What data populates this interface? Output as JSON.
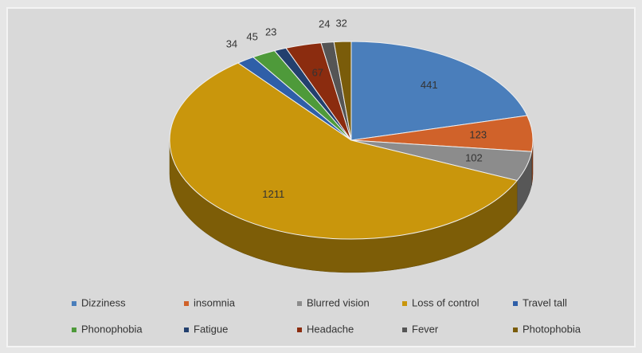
{
  "chart_data": {
    "type": "pie",
    "categories": [
      "Dizziness",
      "insomnia",
      "Blurred vision",
      "Loss of control",
      "Travel tall",
      "Phonophobia",
      "Fatigue",
      "Headache",
      "Fever",
      "Photophobia"
    ],
    "values": [
      441,
      123,
      102,
      1211,
      34,
      45,
      23,
      67,
      24,
      32
    ],
    "colors": [
      "#4a7ebb",
      "#d0622a",
      "#8c8c8c",
      "#c9960c",
      "#2f5fa8",
      "#4e9a3a",
      "#23406e",
      "#8b2c0f",
      "#555555",
      "#7a5c0a"
    ],
    "legend": "bottom"
  }
}
